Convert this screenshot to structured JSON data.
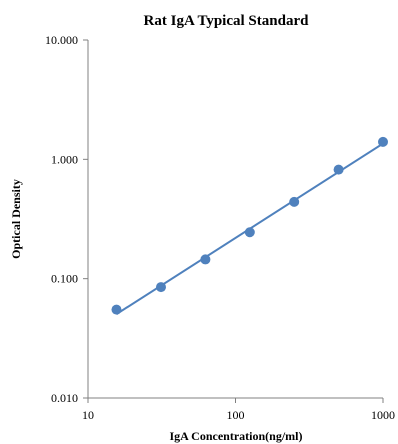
{
  "chart_data": {
    "type": "scatter",
    "title": "Rat IgA Typical  Standard",
    "xlabel": "IgA  Concentration(ng/ml)",
    "ylabel": "Optical Density",
    "x_scale": "log",
    "y_scale": "log",
    "xlim": [
      10,
      1000
    ],
    "ylim": [
      0.01,
      10
    ],
    "x_ticks": [
      "10",
      "100",
      "1000"
    ],
    "y_ticks": [
      "10.000",
      "1.000",
      "0.100",
      "0.010"
    ],
    "grid": false,
    "legend": "none",
    "series": [
      {
        "x": [
          15.6,
          31.25,
          62.5,
          125,
          250,
          500,
          1000
        ],
        "y": [
          0.055,
          0.085,
          0.145,
          0.245,
          0.44,
          0.82,
          1.4
        ],
        "trendline": "power"
      }
    ],
    "colors": {
      "marker": "#4f81bd",
      "line": "#4f81bd"
    }
  }
}
